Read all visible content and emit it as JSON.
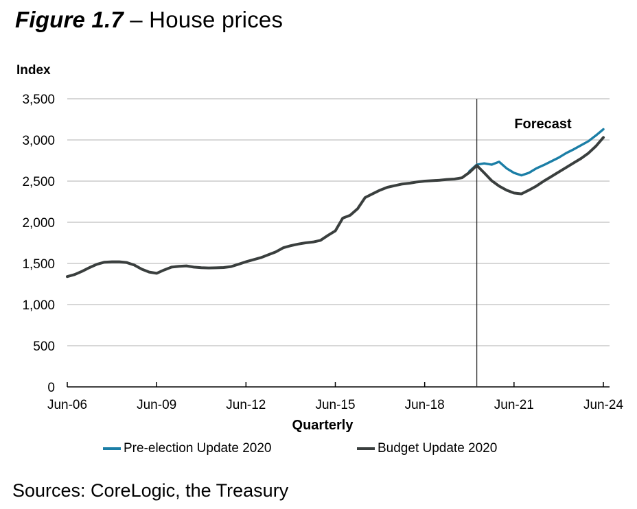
{
  "header": {
    "title_prefix": "Figure 1.7",
    "title_rest": " – House prices"
  },
  "footer": {
    "sources": "Sources: CoreLogic, the Treasury"
  },
  "chart_data": {
    "type": "line",
    "title": "Figure 1.7 – House prices",
    "ylabel": "Index",
    "xlabel": "Quarterly",
    "annotation": "Forecast",
    "x_frequency": "quarterly",
    "x_start_label": "Jun-06",
    "x_end_label": "Jun-24",
    "ylim": [
      0,
      3500
    ],
    "ytick_step": 500,
    "grid": "horizontal",
    "legend_position": "bottom",
    "y_ticks": [
      {
        "value": 0,
        "label": "0"
      },
      {
        "value": 500,
        "label": "500"
      },
      {
        "value": 1000,
        "label": "1,000"
      },
      {
        "value": 1500,
        "label": "1,500"
      },
      {
        "value": 2000,
        "label": "2,000"
      },
      {
        "value": 2500,
        "label": "2,500"
      },
      {
        "value": 3000,
        "label": "3,000"
      },
      {
        "value": 3500,
        "label": "3,500"
      }
    ],
    "x_ticks": [
      {
        "q": 0,
        "label": "Jun-06"
      },
      {
        "q": 12,
        "label": "Jun-09"
      },
      {
        "q": 24,
        "label": "Jun-12"
      },
      {
        "q": 36,
        "label": "Jun-15"
      },
      {
        "q": 48,
        "label": "Jun-18"
      },
      {
        "q": 60,
        "label": "Jun-21"
      },
      {
        "q": 72,
        "label": "Jun-24"
      }
    ],
    "forecast_divider_q": 55,
    "forecast_divider_label_at": "Mar-20",
    "colors": {
      "gridline": "#bfbfbf",
      "axis": "#000000",
      "divider": "#2e2e2e"
    },
    "series": [
      {
        "name": "Pre-election Update 2020",
        "color": "#1b7ea6",
        "line_width": 3.4,
        "start_q": 54,
        "start_label": "Dec-19",
        "values": [
          2620,
          2700,
          2715,
          2700,
          2735,
          2655,
          2600,
          2570,
          2600,
          2655,
          2695,
          2740,
          2785,
          2840,
          2885,
          2935,
          2985,
          3055,
          3130
        ]
      },
      {
        "name": "Budget Update 2020",
        "color": "#3a3f3e",
        "line_width": 4,
        "start_q": 0,
        "start_label": "Jun-06",
        "values": [
          1340,
          1365,
          1405,
          1450,
          1490,
          1515,
          1520,
          1520,
          1510,
          1480,
          1430,
          1395,
          1380,
          1420,
          1455,
          1465,
          1470,
          1455,
          1448,
          1445,
          1447,
          1450,
          1462,
          1490,
          1520,
          1545,
          1570,
          1605,
          1640,
          1690,
          1715,
          1735,
          1750,
          1760,
          1780,
          1840,
          1895,
          2050,
          2085,
          2165,
          2300,
          2345,
          2390,
          2425,
          2445,
          2465,
          2475,
          2490,
          2500,
          2505,
          2510,
          2520,
          2525,
          2540,
          2605,
          2690,
          2600,
          2505,
          2440,
          2390,
          2355,
          2345,
          2390,
          2440,
          2500,
          2555,
          2610,
          2665,
          2720,
          2775,
          2840,
          2925,
          3030
        ]
      }
    ]
  }
}
